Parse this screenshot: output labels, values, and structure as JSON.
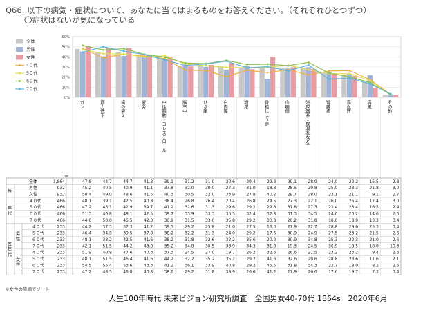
{
  "title": "Q66. 以下の病気・症状について、あなたに当てはまるものをお答えください。（それぞれひとつずつ）",
  "subtitle": "〇症状はないが気になっている",
  "note": "※女性の降順でソート",
  "source": "人生100年時代 未来ビジョン研究所調査　全国男女40-70代 1864s　2020年6月",
  "chart_data": {
    "type": "bar",
    "categories": [
      "ガン",
      "筋力低下",
      "歯の衰え",
      "疲労",
      "中性脂肪・コレステロール",
      "脳卒中",
      "ひざ痛",
      "白内障",
      "糖尿",
      "骨粗しょう症",
      "血糖値",
      "泌尿器系（尿漏れなど）",
      "腎臓病",
      "高血圧",
      "痛風",
      "その他"
    ],
    "ylim": [
      0,
      60
    ],
    "yticks": [
      "0%",
      "10%",
      "20%",
      "30%",
      "40%",
      "50%",
      "60%"
    ],
    "n_label": "n=",
    "colors": {
      "全体": "#c8c8c8",
      "男性": "#9fb4d6",
      "女性": "#e89ca3",
      "4０代": "#f0b040",
      "5０代": "#e3e055",
      "6０代": "#8fc050",
      "7０代": "#5fb4d8"
    },
    "bar_series": [
      "全体",
      "男性",
      "女性"
    ],
    "line_series": [
      "4０代",
      "5０代",
      "6０代",
      "7０代"
    ],
    "series": [
      {
        "name": "全体",
        "n": "1,864",
        "values": [
          47.8,
          44.7,
          44.7,
          41.3,
          39.1,
          31.2,
          31.0,
          30.6,
          29.4,
          29.3,
          29.1,
          28.9,
          24.0,
          22.2,
          15.5,
          2.8
        ]
      },
      {
        "name": "男性",
        "n": "932",
        "values": [
          45.2,
          40.5,
          40.9,
          41.1,
          37.8,
          32.0,
          30.0,
          27.3,
          31.0,
          18.3,
          28.5,
          29.8,
          25.0,
          23.3,
          21.8,
          3.0
        ]
      },
      {
        "name": "女性",
        "n": "932",
        "values": [
          50.4,
          49.0,
          48.6,
          41.5,
          40.3,
          30.5,
          32.0,
          33.9,
          27.8,
          40.2,
          29.7,
          28.0,
          23.1,
          21.1,
          9.1,
          2.7
        ]
      },
      {
        "name": "4０代",
        "n": "466",
        "values": [
          48.1,
          39.1,
          42.5,
          40.8,
          38.4,
          26.8,
          26.4,
          20.4,
          26.8,
          24.5,
          27.3,
          22.1,
          26.0,
          26.4,
          17.4,
          3.0
        ]
      },
      {
        "name": "5０代",
        "n": "466",
        "values": [
          47.2,
          43.1,
          42.9,
          39.7,
          41.2,
          32.6,
          31.3,
          29.6,
          29.2,
          29.6,
          31.8,
          27.3,
          23.4,
          23.4,
          16.5,
          2.4
        ]
      },
      {
        "name": "6０代",
        "n": "466",
        "values": [
          51.3,
          46.8,
          48.1,
          42.5,
          39.7,
          33.9,
          33.3,
          36.5,
          32.4,
          32.8,
          31.3,
          34.5,
          24.0,
          20.2,
          14.6,
          2.6
        ]
      },
      {
        "name": "7０代",
        "n": "466",
        "values": [
          44.6,
          50.0,
          45.5,
          42.3,
          36.9,
          31.5,
          33.0,
          35.8,
          29.2,
          30.3,
          26.2,
          31.8,
          18.0,
          18.9,
          13.3,
          3.4
        ]
      }
    ],
    "legend_position": "top-left"
  },
  "table": {
    "groups": [
      {
        "label": "性",
        "rows": [
          0,
          1
        ]
      },
      {
        "label": "年代",
        "rows": [
          2,
          5
        ]
      },
      {
        "label": "性年代",
        "rows": [
          6,
          13
        ]
      }
    ],
    "subgroups": [
      {
        "label": "男性",
        "rows": [
          6,
          9
        ]
      },
      {
        "label": "女性",
        "rows": [
          10,
          13
        ]
      }
    ],
    "rows": [
      {
        "label": "全体",
        "n": "1,864",
        "values": [
          47.8,
          44.7,
          44.7,
          41.3,
          39.1,
          31.2,
          31.0,
          30.6,
          29.4,
          29.3,
          29.1,
          28.9,
          24.0,
          22.2,
          15.5,
          2.8
        ]
      },
      {
        "label": "男性",
        "n": "932",
        "values": [
          45.2,
          40.5,
          40.9,
          41.1,
          37.8,
          32.0,
          30.0,
          27.3,
          31.0,
          18.3,
          28.5,
          29.8,
          25.0,
          23.3,
          21.8,
          3.0
        ]
      },
      {
        "label": "女性",
        "n": "932",
        "values": [
          50.4,
          49.0,
          48.6,
          41.5,
          40.3,
          30.5,
          32.0,
          33.9,
          27.8,
          40.2,
          29.7,
          28.0,
          23.1,
          21.1,
          9.1,
          2.7
        ]
      },
      {
        "label": "４０代",
        "n": "466",
        "values": [
          48.1,
          39.1,
          42.5,
          40.8,
          38.4,
          26.8,
          26.4,
          20.4,
          26.8,
          24.5,
          27.3,
          22.1,
          26.0,
          26.4,
          17.4,
          3.0
        ]
      },
      {
        "label": "５０代",
        "n": "466",
        "values": [
          47.2,
          43.1,
          42.9,
          39.7,
          41.2,
          32.6,
          31.3,
          29.6,
          29.2,
          29.6,
          31.8,
          27.3,
          23.4,
          23.4,
          16.5,
          2.4
        ]
      },
      {
        "label": "６０代",
        "n": "466",
        "values": [
          51.3,
          46.8,
          48.1,
          42.5,
          39.7,
          33.9,
          33.3,
          36.5,
          32.4,
          32.8,
          31.3,
          34.5,
          24.0,
          20.2,
          14.6,
          2.6
        ]
      },
      {
        "label": "７０代",
        "n": "466",
        "values": [
          44.6,
          50.0,
          45.5,
          42.3,
          36.9,
          31.5,
          33.0,
          35.8,
          29.2,
          30.3,
          26.2,
          31.8,
          18.0,
          18.9,
          13.3,
          3.4
        ]
      },
      {
        "label": "４０代",
        "n": "233",
        "values": [
          44.2,
          37.3,
          37.3,
          41.2,
          39.5,
          29.2,
          25.8,
          21.0,
          27.5,
          16.3,
          27.9,
          22.7,
          28.8,
          29.6,
          25.3,
          3.4
        ]
      },
      {
        "label": "５０代",
        "n": "233",
        "values": [
          46.4,
          34.8,
          39.5,
          37.8,
          38.2,
          32.2,
          31.3,
          24.0,
          29.2,
          17.6,
          30.9,
          24.9,
          27.5,
          23.2,
          21.5,
          2.6
        ]
      },
      {
        "label": "６０代",
        "n": "233",
        "values": [
          48.1,
          38.2,
          42.5,
          41.6,
          38.2,
          31.8,
          32.6,
          32.2,
          35.6,
          20.2,
          30.9,
          34.8,
          25.3,
          22.3,
          21.0,
          2.6
        ]
      },
      {
        "label": "７０代",
        "n": "233",
        "values": [
          42.1,
          51.5,
          44.2,
          43.8,
          35.2,
          34.8,
          30.5,
          33.9,
          34.3,
          31.8,
          19.3,
          24.5,
          36.9,
          18.5,
          18.0,
          19.3
        ]
      },
      {
        "label": "４０代",
        "n": "233",
        "values": [
          51.9,
          40.8,
          47.6,
          40.3,
          37.3,
          24.5,
          27.0,
          19.7,
          26.2,
          32.6,
          26.6,
          21.5,
          23.2,
          23.2,
          9.4,
          2.6
        ]
      },
      {
        "label": "５０代",
        "n": "233",
        "values": [
          48.1,
          51.5,
          46.4,
          41.6,
          44.2,
          32.2,
          35.2,
          35.2,
          29.2,
          41.6,
          32.6,
          29.6,
          28.8,
          23.6,
          11.6,
          2.1
        ]
      },
      {
        "label": "６０代",
        "n": "233",
        "values": [
          54.5,
          55.4,
          53.6,
          43.3,
          41.2,
          36.1,
          33.9,
          40.8,
          29.2,
          45.5,
          31.8,
          34.3,
          22.7,
          18.0,
          8.2,
          2.6
        ]
      },
      {
        "label": "７０代",
        "n": "233",
        "values": [
          47.2,
          48.5,
          46.8,
          40.8,
          38.6,
          29.2,
          31.8,
          39.9,
          26.6,
          41.2,
          27.9,
          26.6,
          17.6,
          19.7,
          7.3,
          3.4
        ]
      }
    ]
  }
}
